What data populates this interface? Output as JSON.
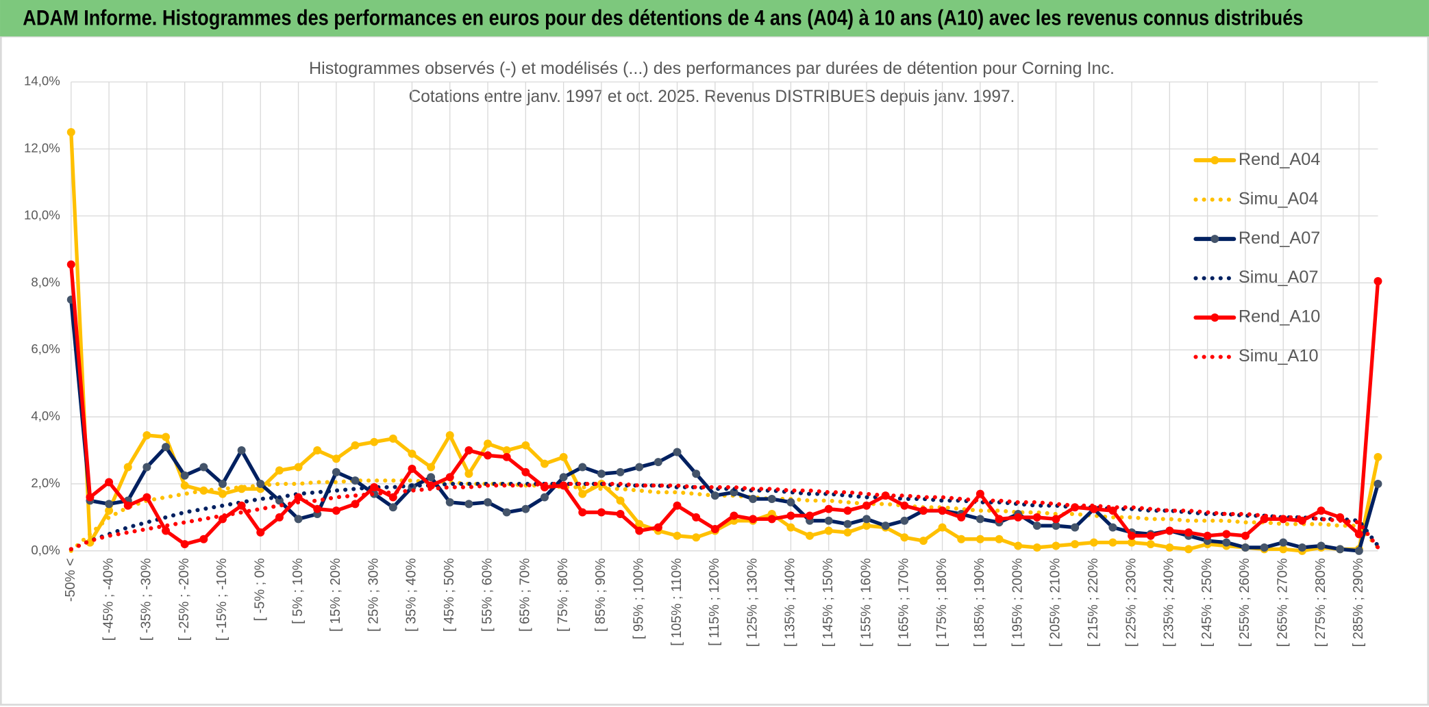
{
  "header": {
    "title": "ADAM Informe. Histogrammes des performances en euros pour des détentions de 4 ans (A04) à 10 ans (A10) avec les revenus connus distribués"
  },
  "chart_data": {
    "type": "line",
    "title": "Histogrammes observés (-) et modélisés (...) des performances par durées de détention pour Corning Inc.",
    "subtitle": "Cotations entre janv. 1997 et oct. 2025. Revenus DISTRIBUES depuis janv. 1997.",
    "categories": [
      "-50% <",
      null,
      "[ -45% ; -40%",
      null,
      "[ -35% ; -30%",
      null,
      "[ -25% ; -20%",
      null,
      "[ -15% ; -10%",
      null,
      "[ -5% ; 0%",
      null,
      "[ 5% ; 10%",
      null,
      "[ 15% ; 20%",
      null,
      "[ 25% ; 30%",
      null,
      "[ 35% ; 40%",
      null,
      "[ 45% ; 50%",
      null,
      "[ 55% ; 60%",
      null,
      "[ 65% ; 70%",
      null,
      "[ 75% ; 80%",
      null,
      "[ 85% ; 90%",
      null,
      "[ 95% ; 100%",
      null,
      "[ 105% ; 110%",
      null,
      "[ 115% ; 120%",
      null,
      "[ 125% ; 130%",
      null,
      "[ 135% ; 140%",
      null,
      "[ 145% ; 150%",
      null,
      "[ 155% ; 160%",
      null,
      "[ 165% ; 170%",
      null,
      "[ 175% ; 180%",
      null,
      "[ 185% ; 190%",
      null,
      "[ 195% ; 200%",
      null,
      "[ 205% ; 210%",
      null,
      "[ 215% ; 220%",
      null,
      "[ 225% ; 230%",
      null,
      "[ 235% ; 240%",
      null,
      "[ 245% ; 250%",
      null,
      "[ 255% ; 260%",
      null,
      "[ 265% ; 270%",
      null,
      "[ 275% ; 280%",
      null,
      "[ 285% ; 290%",
      null
    ],
    "ylim": [
      0,
      14
    ],
    "yticks": [
      {
        "value": 0,
        "label": "0,0%"
      },
      {
        "value": 2,
        "label": "2,0%"
      },
      {
        "value": 4,
        "label": "4,0%"
      },
      {
        "value": 6,
        "label": "6,0%"
      },
      {
        "value": 8,
        "label": "8,0%"
      },
      {
        "value": 10,
        "label": "10,0%"
      },
      {
        "value": 12,
        "label": "12,0%"
      },
      {
        "value": 14,
        "label": "14,0%"
      }
    ],
    "grid": true,
    "legend": "right",
    "series": [
      {
        "name": "Rend_A04",
        "color": "#FFC000",
        "line_style": "solid",
        "markers": true,
        "values": [
          12.5,
          0.25,
          1.2,
          2.5,
          3.45,
          3.4,
          1.95,
          1.8,
          1.7,
          1.85,
          1.85,
          2.4,
          2.5,
          3.0,
          2.75,
          3.15,
          3.25,
          3.35,
          2.9,
          2.5,
          3.45,
          2.3,
          3.2,
          3.0,
          3.15,
          2.6,
          2.8,
          1.7,
          2.0,
          1.5,
          0.8,
          0.6,
          0.45,
          0.4,
          0.6,
          0.9,
          0.9,
          1.1,
          0.7,
          0.45,
          0.6,
          0.55,
          0.75,
          0.7,
          0.4,
          0.3,
          0.7,
          0.35,
          0.35,
          0.35,
          0.15,
          0.1,
          0.15,
          0.2,
          0.25,
          0.25,
          0.25,
          0.2,
          0.1,
          0.05,
          0.2,
          0.15,
          0.1,
          0.05,
          0.05,
          0.0,
          0.1,
          0.05,
          0.05,
          2.8
        ]
      },
      {
        "name": "Simu_A04",
        "color": "#FFC000",
        "line_style": "dotted",
        "markers": false,
        "values": [
          0.0,
          0.5,
          1.0,
          1.3,
          1.5,
          1.6,
          1.7,
          1.8,
          1.85,
          1.9,
          1.95,
          2.0,
          2.0,
          2.05,
          2.05,
          2.1,
          2.1,
          2.1,
          2.1,
          2.05,
          2.05,
          2.0,
          2.0,
          2.0,
          1.95,
          1.95,
          1.9,
          1.9,
          1.85,
          1.85,
          1.8,
          1.75,
          1.75,
          1.7,
          1.65,
          1.65,
          1.6,
          1.55,
          1.55,
          1.5,
          1.5,
          1.45,
          1.4,
          1.4,
          1.35,
          1.3,
          1.3,
          1.25,
          1.2,
          1.2,
          1.15,
          1.15,
          1.1,
          1.1,
          1.05,
          1.0,
          1.0,
          0.95,
          0.95,
          0.9,
          0.9,
          0.9,
          0.85,
          0.85,
          0.8,
          0.8,
          0.8,
          0.75,
          0.75,
          0.1
        ]
      },
      {
        "name": "Rend_A07",
        "color": "#002060",
        "marker_color": "#44546A",
        "line_style": "solid",
        "markers": true,
        "values": [
          7.5,
          1.5,
          1.4,
          1.5,
          2.5,
          3.1,
          2.25,
          2.5,
          2.0,
          3.0,
          2.0,
          1.5,
          0.95,
          1.1,
          2.35,
          2.1,
          1.7,
          1.3,
          1.9,
          2.2,
          1.45,
          1.4,
          1.45,
          1.15,
          1.25,
          1.6,
          2.2,
          2.5,
          2.3,
          2.35,
          2.5,
          2.65,
          2.95,
          2.3,
          1.65,
          1.75,
          1.55,
          1.55,
          1.45,
          0.9,
          0.9,
          0.8,
          0.95,
          0.75,
          0.9,
          1.2,
          1.2,
          1.1,
          0.95,
          0.85,
          1.1,
          0.75,
          0.75,
          0.7,
          1.25,
          0.7,
          0.55,
          0.5,
          0.6,
          0.45,
          0.3,
          0.25,
          0.1,
          0.1,
          0.25,
          0.1,
          0.15,
          0.05,
          0.0,
          2.0
        ]
      },
      {
        "name": "Simu_A07",
        "color": "#002060",
        "line_style": "dotted",
        "markers": false,
        "values": [
          0.05,
          0.3,
          0.5,
          0.7,
          0.85,
          1.0,
          1.15,
          1.25,
          1.35,
          1.45,
          1.55,
          1.6,
          1.7,
          1.75,
          1.8,
          1.85,
          1.9,
          1.9,
          1.95,
          1.95,
          2.0,
          2.0,
          2.0,
          2.0,
          2.0,
          2.0,
          2.0,
          2.0,
          2.0,
          1.95,
          1.95,
          1.95,
          1.9,
          1.9,
          1.85,
          1.85,
          1.8,
          1.8,
          1.75,
          1.7,
          1.7,
          1.65,
          1.6,
          1.6,
          1.55,
          1.55,
          1.5,
          1.5,
          1.45,
          1.45,
          1.4,
          1.35,
          1.35,
          1.3,
          1.3,
          1.25,
          1.25,
          1.2,
          1.2,
          1.15,
          1.1,
          1.1,
          1.05,
          1.05,
          1.0,
          1.0,
          0.95,
          0.95,
          0.9,
          0.15
        ]
      },
      {
        "name": "Rend_A10",
        "color": "#FF0000",
        "line_style": "solid",
        "markers": true,
        "values": [
          8.55,
          1.6,
          2.05,
          1.35,
          1.6,
          0.6,
          0.2,
          0.35,
          0.95,
          1.35,
          0.55,
          1.0,
          1.6,
          1.25,
          1.2,
          1.4,
          1.9,
          1.6,
          2.45,
          1.95,
          2.2,
          3.0,
          2.85,
          2.8,
          2.35,
          1.9,
          1.95,
          1.15,
          1.15,
          1.1,
          0.6,
          0.7,
          1.35,
          1.0,
          0.65,
          1.05,
          0.95,
          0.95,
          1.05,
          1.05,
          1.25,
          1.2,
          1.35,
          1.65,
          1.35,
          1.2,
          1.2,
          1.0,
          1.7,
          0.95,
          1.0,
          1.0,
          0.95,
          1.3,
          1.25,
          1.2,
          0.45,
          0.45,
          0.6,
          0.55,
          0.45,
          0.5,
          0.45,
          0.95,
          0.95,
          0.9,
          1.2,
          1.0,
          0.5,
          8.05
        ]
      },
      {
        "name": "Simu_A10",
        "color": "#FF0000",
        "line_style": "dotted",
        "markers": false,
        "values": [
          0.05,
          0.3,
          0.45,
          0.55,
          0.65,
          0.75,
          0.85,
          0.95,
          1.05,
          1.15,
          1.25,
          1.35,
          1.45,
          1.5,
          1.6,
          1.65,
          1.7,
          1.75,
          1.8,
          1.85,
          1.9,
          1.9,
          1.95,
          1.95,
          1.95,
          2.0,
          2.0,
          2.0,
          2.0,
          2.0,
          1.95,
          1.95,
          1.95,
          1.9,
          1.9,
          1.9,
          1.85,
          1.85,
          1.8,
          1.8,
          1.75,
          1.75,
          1.7,
          1.65,
          1.65,
          1.6,
          1.6,
          1.55,
          1.5,
          1.5,
          1.45,
          1.45,
          1.4,
          1.35,
          1.35,
          1.3,
          1.3,
          1.25,
          1.2,
          1.2,
          1.15,
          1.1,
          1.1,
          1.05,
          1.0,
          1.0,
          0.95,
          0.9,
          0.85,
          0.1
        ]
      }
    ]
  }
}
